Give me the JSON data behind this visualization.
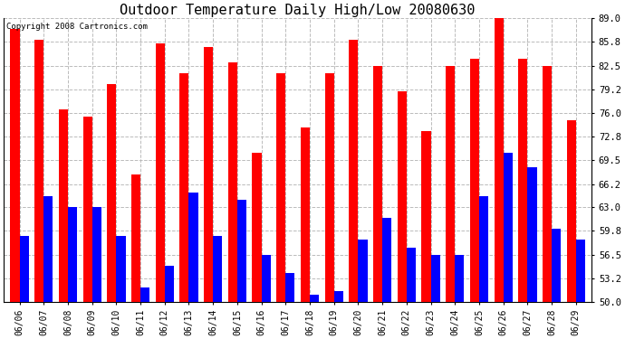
{
  "title": "Outdoor Temperature Daily High/Low 20080630",
  "copyright": "Copyright 2008 Cartronics.com",
  "dates": [
    "06/06",
    "06/07",
    "06/08",
    "06/09",
    "06/10",
    "06/11",
    "06/12",
    "06/13",
    "06/14",
    "06/15",
    "06/16",
    "06/17",
    "06/18",
    "06/19",
    "06/20",
    "06/21",
    "06/22",
    "06/23",
    "06/24",
    "06/25",
    "06/26",
    "06/27",
    "06/28",
    "06/29"
  ],
  "highs": [
    87.5,
    86.0,
    76.5,
    75.5,
    80.0,
    67.5,
    85.5,
    81.5,
    85.0,
    83.0,
    70.5,
    81.5,
    74.0,
    81.5,
    86.0,
    82.5,
    79.0,
    73.5,
    82.5,
    83.5,
    89.0,
    83.5,
    82.5,
    75.0
  ],
  "lows": [
    59.0,
    64.5,
    63.0,
    63.0,
    59.0,
    52.0,
    55.0,
    65.0,
    59.0,
    64.0,
    56.5,
    54.0,
    51.0,
    51.5,
    58.5,
    61.5,
    57.5,
    56.5,
    56.5,
    64.5,
    70.5,
    68.5,
    60.0,
    58.5
  ],
  "high_color": "#ff0000",
  "low_color": "#0000ff",
  "bg_color": "#ffffff",
  "grid_color": "#bbbbbb",
  "ylim_min": 50.0,
  "ylim_max": 89.0,
  "yticks": [
    50.0,
    53.2,
    56.5,
    59.8,
    63.0,
    66.2,
    69.5,
    72.8,
    76.0,
    79.2,
    82.5,
    85.8,
    89.0
  ],
  "title_fontsize": 11,
  "copyright_fontsize": 6.5,
  "bar_width": 0.38,
  "dpi": 100,
  "fig_width": 6.9,
  "fig_height": 3.75
}
